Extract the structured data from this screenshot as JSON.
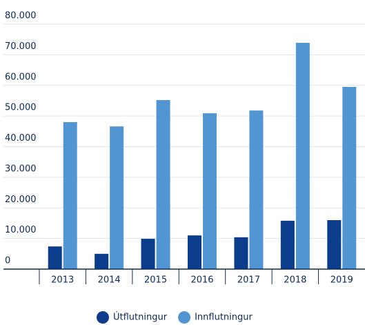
{
  "chart_data": {
    "type": "bar",
    "categories": [
      "2013",
      "2014",
      "2015",
      "2016",
      "2017",
      "2018",
      "2019"
    ],
    "series": [
      {
        "name": "Útflutningur",
        "color": "#0b3d8c",
        "values": [
          7400,
          5000,
          9900,
          11000,
          10400,
          15800,
          16000
        ]
      },
      {
        "name": "Innflutningur",
        "color": "#5295d3",
        "values": [
          48000,
          46600,
          55200,
          50900,
          51800,
          73900,
          59500
        ]
      }
    ],
    "ylim": [
      0,
      80000
    ],
    "yticks": [
      0,
      {
        "value": 10000,
        "label": "10.000"
      },
      {
        "value": 20000,
        "label": "20.000"
      },
      {
        "value": 30000,
        "label": "30.000"
      },
      {
        "value": 40000,
        "label": "40.000"
      },
      {
        "value": 50000,
        "label": "50.000"
      },
      {
        "value": 60000,
        "label": "60.000"
      },
      {
        "value": 70000,
        "label": "70.000"
      },
      {
        "value": 80000,
        "label": "80.000"
      }
    ],
    "grid": true,
    "legend": "bottom"
  }
}
